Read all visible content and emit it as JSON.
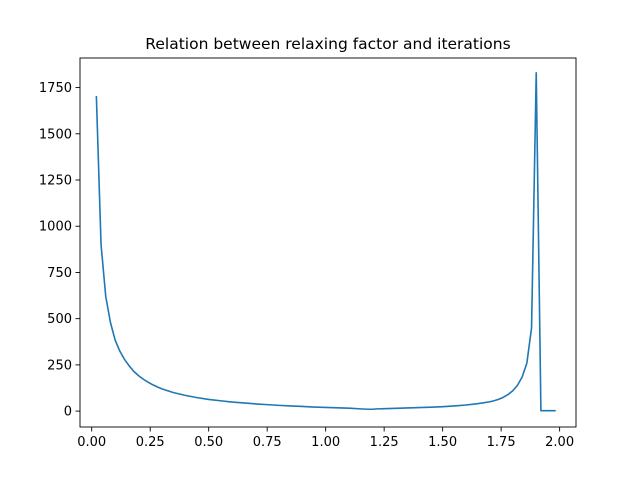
{
  "chart_data": {
    "type": "line",
    "title": "Relation between relaxing factor and iterations",
    "xlabel": "",
    "ylabel": "",
    "xlim": [
      -0.05,
      2.07
    ],
    "ylim": [
      -86,
      1910
    ],
    "x_ticks": [
      0.0,
      0.25,
      0.5,
      0.75,
      1.0,
      1.25,
      1.5,
      1.75,
      2.0
    ],
    "x_tick_labels": [
      "0.00",
      "0.25",
      "0.50",
      "0.75",
      "1.00",
      "1.25",
      "1.50",
      "1.75",
      "2.00"
    ],
    "y_ticks": [
      0,
      250,
      500,
      750,
      1000,
      1250,
      1500,
      1750
    ],
    "y_tick_labels": [
      "0",
      "250",
      "500",
      "750",
      "1000",
      "1250",
      "1500",
      "1750"
    ],
    "grid": false,
    "series": [
      {
        "color": "#1f77b4",
        "x": [
          0.02,
          0.04,
          0.06,
          0.08,
          0.1,
          0.12,
          0.14,
          0.16,
          0.18,
          0.2,
          0.22,
          0.24,
          0.26,
          0.28,
          0.3,
          0.35,
          0.4,
          0.45,
          0.5,
          0.55,
          0.6,
          0.65,
          0.7,
          0.75,
          0.8,
          0.85,
          0.9,
          0.95,
          1.0,
          1.05,
          1.1,
          1.15,
          1.18,
          1.2,
          1.22,
          1.25,
          1.3,
          1.35,
          1.4,
          1.45,
          1.5,
          1.55,
          1.6,
          1.65,
          1.7,
          1.72,
          1.74,
          1.76,
          1.78,
          1.8,
          1.82,
          1.84,
          1.86,
          1.88,
          1.9,
          1.92,
          1.94,
          1.96,
          1.98
        ],
        "y": [
          1700,
          900,
          620,
          480,
          385,
          325,
          280,
          245,
          215,
          192,
          173,
          157,
          143,
          131,
          120,
          100,
          85,
          73,
          63,
          56,
          49,
          44,
          39,
          35,
          31,
          28,
          25,
          22,
          20,
          18,
          16,
          12,
          10,
          10,
          12,
          13,
          15,
          17,
          19,
          21,
          24,
          28,
          33,
          40,
          50,
          56,
          64,
          75,
          90,
          110,
          140,
          185,
          260,
          450,
          1830,
          2,
          2,
          2,
          2
        ]
      }
    ]
  }
}
